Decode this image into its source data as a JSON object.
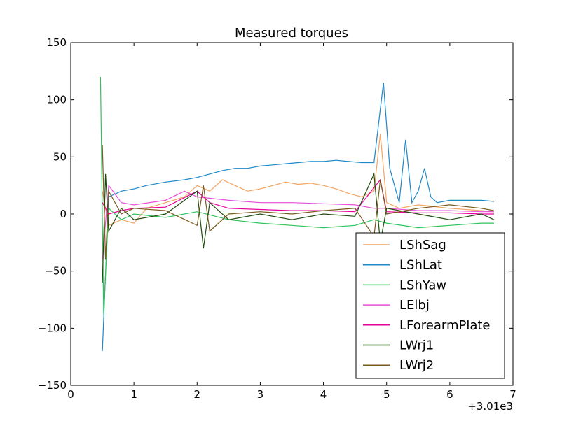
{
  "chart_data": {
    "type": "line",
    "title": "Measured torques",
    "xlabel": "",
    "ylabel": "",
    "x_offset_label": "+3.01e3",
    "xlim": [
      0,
      7
    ],
    "ylim": [
      -150,
      150
    ],
    "xticks": [
      0,
      1,
      2,
      3,
      4,
      5,
      6,
      7
    ],
    "yticks": [
      -150,
      -100,
      -50,
      0,
      50,
      100,
      150
    ],
    "grid": false,
    "legend_position": "lower-right",
    "series": [
      {
        "name": "LShSag",
        "color": "#f4a460",
        "points": [
          [
            0.5,
            20
          ],
          [
            0.6,
            -10
          ],
          [
            0.8,
            -5
          ],
          [
            1.0,
            -8
          ],
          [
            1.2,
            5
          ],
          [
            1.5,
            10
          ],
          [
            1.8,
            15
          ],
          [
            2.0,
            25
          ],
          [
            2.2,
            20
          ],
          [
            2.4,
            30
          ],
          [
            2.6,
            25
          ],
          [
            2.8,
            20
          ],
          [
            3.0,
            22
          ],
          [
            3.2,
            25
          ],
          [
            3.4,
            28
          ],
          [
            3.6,
            26
          ],
          [
            3.8,
            27
          ],
          [
            4.0,
            25
          ],
          [
            4.2,
            22
          ],
          [
            4.4,
            18
          ],
          [
            4.6,
            15
          ],
          [
            4.8,
            20
          ],
          [
            4.9,
            70
          ],
          [
            5.0,
            10
          ],
          [
            5.2,
            5
          ],
          [
            5.5,
            8
          ],
          [
            6.0,
            5
          ],
          [
            6.5,
            3
          ],
          [
            6.7,
            2
          ]
        ]
      },
      {
        "name": "LShLat",
        "color": "#1e88c8",
        "points": [
          [
            0.5,
            -120
          ],
          [
            0.6,
            15
          ],
          [
            0.8,
            20
          ],
          [
            1.0,
            22
          ],
          [
            1.2,
            25
          ],
          [
            1.5,
            28
          ],
          [
            1.8,
            30
          ],
          [
            2.0,
            32
          ],
          [
            2.2,
            35
          ],
          [
            2.4,
            38
          ],
          [
            2.6,
            40
          ],
          [
            2.8,
            40
          ],
          [
            3.0,
            42
          ],
          [
            3.2,
            43
          ],
          [
            3.4,
            44
          ],
          [
            3.6,
            45
          ],
          [
            3.8,
            46
          ],
          [
            4.0,
            46
          ],
          [
            4.2,
            47
          ],
          [
            4.4,
            46
          ],
          [
            4.6,
            45
          ],
          [
            4.8,
            45
          ],
          [
            4.95,
            115
          ],
          [
            5.05,
            40
          ],
          [
            5.2,
            10
          ],
          [
            5.3,
            65
          ],
          [
            5.4,
            10
          ],
          [
            5.5,
            20
          ],
          [
            5.6,
            40
          ],
          [
            5.7,
            15
          ],
          [
            5.8,
            10
          ],
          [
            6.0,
            12
          ],
          [
            6.5,
            12
          ],
          [
            6.7,
            11
          ]
        ]
      },
      {
        "name": "LShYaw",
        "color": "#2ec45c",
        "points": [
          [
            0.47,
            120
          ],
          [
            0.52,
            -88
          ],
          [
            0.6,
            5
          ],
          [
            0.8,
            -5
          ],
          [
            1.0,
            0
          ],
          [
            1.5,
            -3
          ],
          [
            2.0,
            2
          ],
          [
            2.5,
            -5
          ],
          [
            3.0,
            -8
          ],
          [
            3.5,
            -10
          ],
          [
            4.0,
            -12
          ],
          [
            4.5,
            -10
          ],
          [
            4.8,
            -5
          ],
          [
            5.0,
            -8
          ],
          [
            5.5,
            -12
          ],
          [
            6.0,
            -10
          ],
          [
            6.5,
            -8
          ],
          [
            6.7,
            -8
          ]
        ]
      },
      {
        "name": "LElbj",
        "color": "#e64fd8",
        "points": [
          [
            0.5,
            -40
          ],
          [
            0.6,
            25
          ],
          [
            0.8,
            10
          ],
          [
            1.0,
            8
          ],
          [
            1.5,
            12
          ],
          [
            1.8,
            20
          ],
          [
            2.0,
            15
          ],
          [
            2.5,
            12
          ],
          [
            3.0,
            10
          ],
          [
            3.5,
            10
          ],
          [
            4.0,
            9
          ],
          [
            4.5,
            8
          ],
          [
            4.8,
            5
          ],
          [
            5.0,
            5
          ],
          [
            5.5,
            3
          ],
          [
            6.0,
            3
          ],
          [
            6.5,
            2
          ],
          [
            6.7,
            2
          ]
        ]
      },
      {
        "name": "LForearmPlate",
        "color": "#e6009a",
        "points": [
          [
            0.5,
            10
          ],
          [
            0.6,
            0
          ],
          [
            0.8,
            3
          ],
          [
            1.0,
            5
          ],
          [
            1.5,
            6
          ],
          [
            2.0,
            20
          ],
          [
            2.2,
            10
          ],
          [
            2.5,
            5
          ],
          [
            3.0,
            4
          ],
          [
            3.5,
            3
          ],
          [
            4.0,
            3
          ],
          [
            4.5,
            2
          ],
          [
            4.9,
            30
          ],
          [
            5.0,
            2
          ],
          [
            5.5,
            1
          ],
          [
            6.0,
            1
          ],
          [
            6.5,
            0
          ],
          [
            6.7,
            0
          ]
        ]
      },
      {
        "name": "LWrj1",
        "color": "#1f4d0f",
        "points": [
          [
            0.5,
            -60
          ],
          [
            0.55,
            35
          ],
          [
            0.6,
            -15
          ],
          [
            0.8,
            5
          ],
          [
            1.0,
            -5
          ],
          [
            1.5,
            0
          ],
          [
            2.0,
            20
          ],
          [
            2.1,
            -30
          ],
          [
            2.2,
            10
          ],
          [
            2.5,
            -5
          ],
          [
            3.0,
            0
          ],
          [
            3.5,
            -5
          ],
          [
            4.0,
            0
          ],
          [
            4.5,
            -2
          ],
          [
            4.8,
            35
          ],
          [
            4.9,
            -25
          ],
          [
            5.0,
            5
          ],
          [
            5.5,
            0
          ],
          [
            6.0,
            -5
          ],
          [
            6.5,
            0
          ],
          [
            6.7,
            -5
          ]
        ]
      },
      {
        "name": "LWrj2",
        "color": "#7a5a1e",
        "points": [
          [
            0.5,
            60
          ],
          [
            0.55,
            -40
          ],
          [
            0.6,
            20
          ],
          [
            0.8,
            0
          ],
          [
            1.0,
            5
          ],
          [
            1.5,
            3
          ],
          [
            2.0,
            -10
          ],
          [
            2.1,
            25
          ],
          [
            2.2,
            -15
          ],
          [
            2.5,
            0
          ],
          [
            3.0,
            2
          ],
          [
            3.5,
            0
          ],
          [
            4.0,
            3
          ],
          [
            4.5,
            5
          ],
          [
            4.8,
            -20
          ],
          [
            4.9,
            30
          ],
          [
            5.0,
            0
          ],
          [
            5.5,
            5
          ],
          [
            6.0,
            8
          ],
          [
            6.5,
            5
          ],
          [
            6.7,
            3
          ]
        ]
      }
    ]
  }
}
